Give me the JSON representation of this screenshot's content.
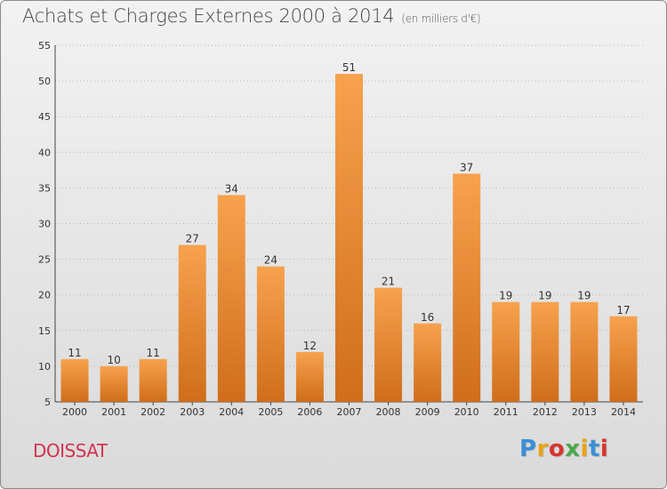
{
  "header": {
    "title": "Achats et Charges Externes 2000 à 2014",
    "subtitle": "(en milliers d'€)"
  },
  "footer": {
    "place": "DOISSAT",
    "logo": "Proxiti"
  },
  "colors": {
    "bar_top": "#f7a24d",
    "bar_bottom": "#d06d1a",
    "place_text": "#d2334f"
  },
  "chart_data": {
    "type": "bar",
    "title": "Achats et Charges Externes 2000 à 2014",
    "subtitle": "(en milliers d'€)",
    "categories": [
      "2000",
      "2001",
      "2002",
      "2003",
      "2004",
      "2005",
      "2006",
      "2007",
      "2008",
      "2009",
      "2010",
      "2011",
      "2012",
      "2013",
      "2014"
    ],
    "values": [
      11,
      10,
      11,
      27,
      34,
      24,
      12,
      51,
      21,
      16,
      37,
      19,
      19,
      19,
      17
    ],
    "ylim": [
      5,
      55
    ],
    "yticks": [
      5,
      10,
      15,
      20,
      25,
      30,
      35,
      40,
      45,
      50,
      55
    ],
    "grid": "horizontal dotted",
    "data_labels": true
  }
}
